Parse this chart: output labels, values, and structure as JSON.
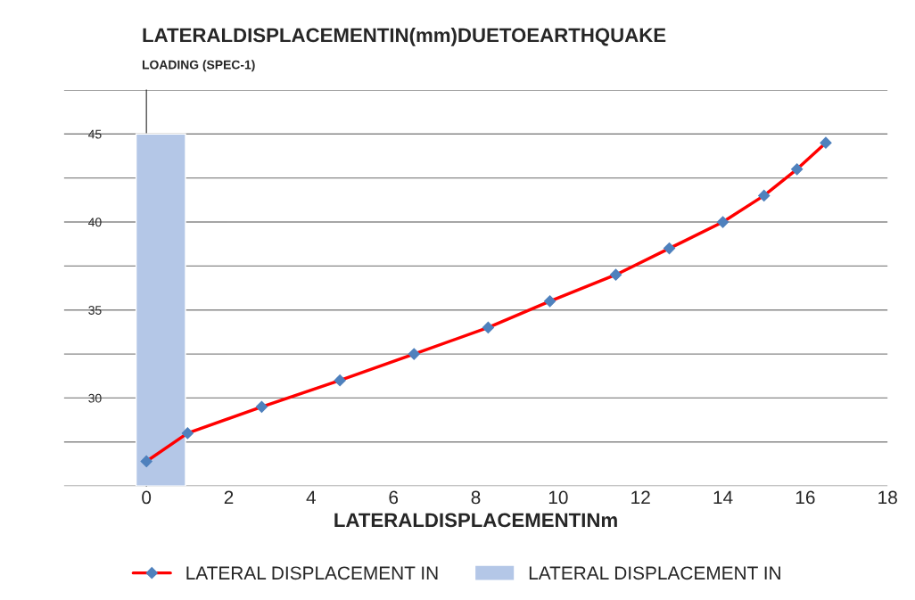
{
  "chart_data": {
    "type": "line",
    "title": "LATERALDISPLACEMENTIN(mm)DUETOEARTHQUAKE",
    "subtitle": "LOADING (SPEC-1)",
    "xlabel": "LATERALDISPLACEMENTINm",
    "xlim": [
      -2,
      18
    ],
    "xticks": [
      0,
      2,
      4,
      6,
      8,
      10,
      12,
      14,
      16,
      18
    ],
    "ylim": [
      25,
      47.5
    ],
    "yticks": [
      {
        "value": 25,
        "label": null
      },
      {
        "value": 27.5,
        "label": null
      },
      30,
      {
        "value": 32.5,
        "label": null
      },
      35,
      {
        "value": 37.5,
        "label": null
      },
      40,
      {
        "value": 42.5,
        "label": null
      },
      45,
      {
        "value": 47.5,
        "label": null
      }
    ],
    "grid": "y",
    "legend": "bottom",
    "marker": "diamond",
    "line_style": "solid",
    "series": [
      {
        "name": "LATERAL DISPLACEMENT IN",
        "color": "#ff0000",
        "x": [
          0,
          1,
          2.8,
          4.7,
          6.5,
          8.3,
          9.8,
          11.4,
          12.7,
          14,
          15,
          15.8,
          16.5
        ],
        "values": [
          26.4,
          28,
          29.5,
          31,
          32.5,
          34,
          35.5,
          37,
          38.5,
          40,
          41.5,
          43,
          44.5
        ]
      },
      {
        "name": "LATERAL DISPLACEMENT IN",
        "type": "bar",
        "color": "#b4c7e7",
        "x": [
          0.35
        ],
        "values": [
          45
        ]
      }
    ]
  }
}
